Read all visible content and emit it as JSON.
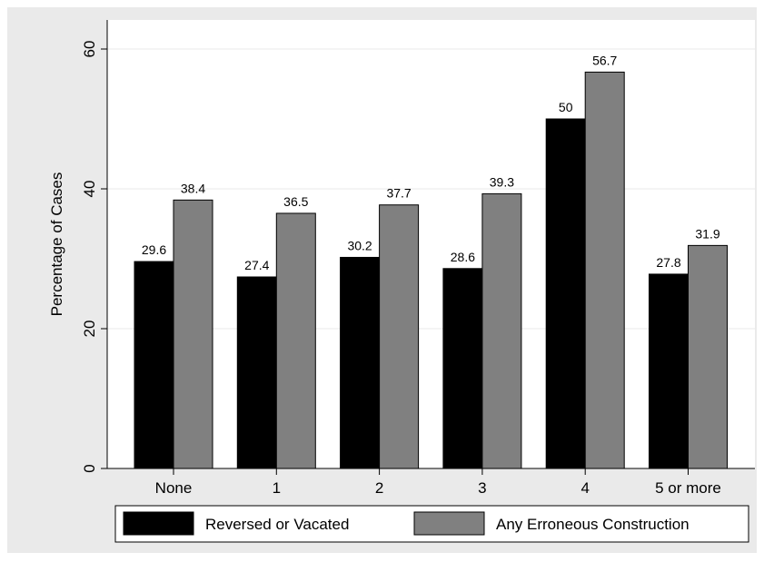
{
  "chart_data": {
    "type": "bar",
    "title": "",
    "xlabel": "",
    "ylabel": "Percentage of Cases",
    "ylim": [
      0,
      60
    ],
    "yticks": [
      "0",
      "20",
      "40",
      "60"
    ],
    "categories": [
      "None",
      "1",
      "2",
      "3",
      "4",
      "5 or more"
    ],
    "series": [
      {
        "name": "Reversed or Vacated",
        "values": [
          29.6,
          27.4,
          30.2,
          28.6,
          50,
          27.8
        ],
        "labels": [
          "29.6",
          "27.4",
          "30.2",
          "28.6",
          "50",
          "27.8"
        ],
        "color": "#000000"
      },
      {
        "name": "Any Erroneous Construction",
        "values": [
          38.4,
          36.5,
          37.7,
          39.3,
          56.7,
          31.9
        ],
        "labels": [
          "38.4",
          "36.5",
          "37.7",
          "39.3",
          "56.7",
          "31.9"
        ],
        "color": "#808080"
      }
    ],
    "grid": true,
    "legend_position": "bottom",
    "colors": {
      "background": "#eaeaea",
      "plot_background": "#ffffff",
      "grid": "#eaeaea"
    }
  }
}
